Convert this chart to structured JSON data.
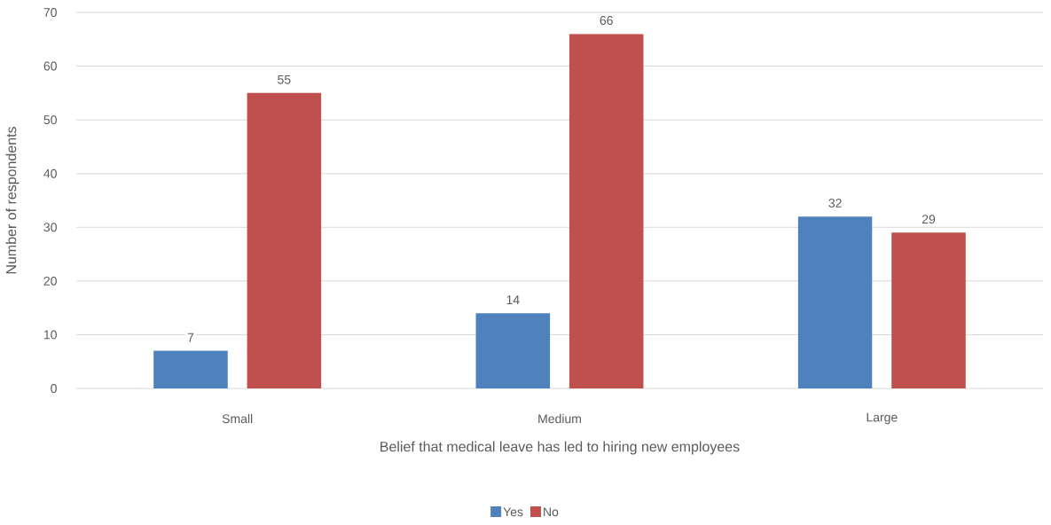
{
  "chart_data": {
    "type": "bar",
    "xlabel": "Belief that medical leave has led to hiring new employees",
    "ylabel": "Number of respondents",
    "categories": [
      "Small",
      "Medium",
      "Large"
    ],
    "series": [
      {
        "name": "Yes",
        "color": "#4f81bd",
        "values": [
          7,
          14,
          32
        ]
      },
      {
        "name": "No",
        "color": "#c0504d",
        "values": [
          55,
          66,
          29
        ]
      }
    ],
    "ylim": [
      0,
      70
    ],
    "yticks": [
      0,
      10,
      20,
      30,
      40,
      50,
      60,
      70
    ],
    "grid": "y",
    "data_labels": true,
    "legend": "bottom"
  }
}
